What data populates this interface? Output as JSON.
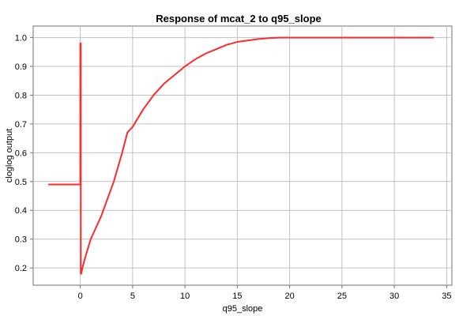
{
  "chart_data": {
    "type": "line",
    "title": "Response of mcat_2 to q95_slope",
    "xlabel": "q95_slope",
    "ylabel": "cloglog output",
    "xlim": [
      -4.5,
      35.5
    ],
    "ylim": [
      0.14,
      1.04
    ],
    "grid": true,
    "x_ticks": [
      0,
      5,
      10,
      15,
      20,
      25,
      30,
      35
    ],
    "x_tick_labels": [
      "0",
      "5",
      "10",
      "15",
      "20",
      "25",
      "30",
      "35"
    ],
    "y_ticks": [
      0.2,
      0.3,
      0.4,
      0.5,
      0.6,
      0.7,
      0.8,
      0.9,
      1.0
    ],
    "y_tick_labels": [
      "0.2",
      "0.3",
      "0.4",
      "0.5",
      "0.6",
      "0.7",
      "0.8",
      "0.9",
      "1.0"
    ],
    "series": [
      {
        "color": "#ff2a2a",
        "points": [
          [
            -3.0,
            0.49
          ],
          [
            0.0,
            0.49
          ],
          [
            0.0,
            0.98
          ],
          [
            0.05,
            0.98
          ],
          [
            0.05,
            0.18
          ],
          [
            0.1,
            0.18
          ],
          [
            0.2,
            0.2
          ],
          [
            0.5,
            0.24
          ],
          [
            1.0,
            0.3
          ],
          [
            2.0,
            0.38
          ],
          [
            3.0,
            0.48
          ],
          [
            3.2,
            0.5
          ],
          [
            4.0,
            0.6
          ],
          [
            4.5,
            0.67
          ],
          [
            5.0,
            0.69
          ],
          [
            6.0,
            0.75
          ],
          [
            7.0,
            0.8
          ],
          [
            8.0,
            0.84
          ],
          [
            9.0,
            0.87
          ],
          [
            10.0,
            0.9
          ],
          [
            11.0,
            0.925
          ],
          [
            12.0,
            0.945
          ],
          [
            13.0,
            0.96
          ],
          [
            14.0,
            0.975
          ],
          [
            15.0,
            0.985
          ],
          [
            16.0,
            0.99
          ],
          [
            17.0,
            0.995
          ],
          [
            18.0,
            0.998
          ],
          [
            19.0,
            1.0
          ],
          [
            25.0,
            1.0
          ],
          [
            33.7,
            1.0
          ]
        ]
      }
    ]
  }
}
